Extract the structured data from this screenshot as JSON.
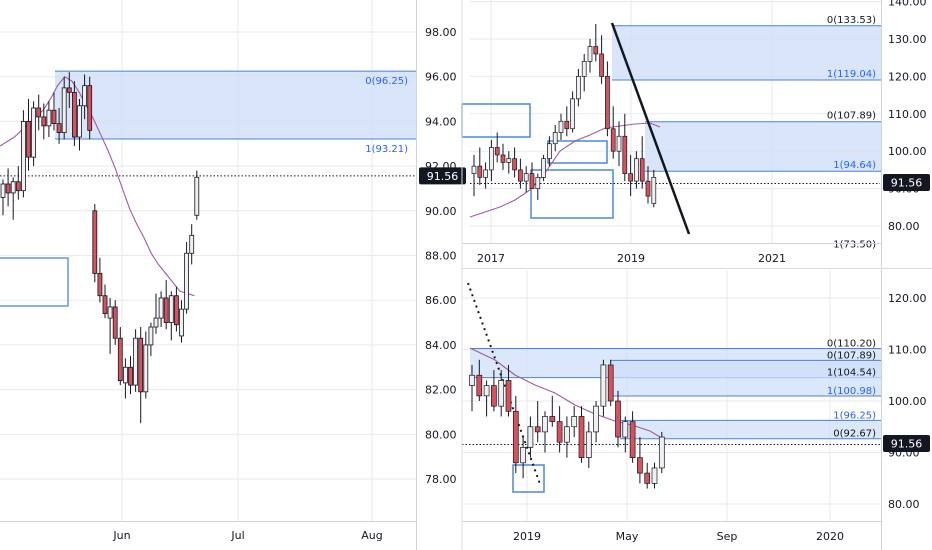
{
  "colors": {
    "up": "#f0f0f0",
    "down": "#d6525c",
    "wick": "#131722",
    "ma": "#a05aa8",
    "zone": "#cfdff8",
    "zone_border": "#4b82d6",
    "box": "#4b88d9",
    "highlight": "#3a66b8",
    "price_label_bg": "#131722",
    "grid": "#e8eaed"
  },
  "chart_data": [
    {
      "name": "daily",
      "type": "candlestick",
      "x_ticks": [
        "Jun",
        "Jul",
        "Aug"
      ],
      "y_ticks": [
        "78.00",
        "80.00",
        "82.00",
        "84.00",
        "86.00",
        "88.00",
        "90.00",
        "92.00",
        "94.00",
        "96.00",
        "98.00"
      ],
      "ylim": [
        76.0,
        99.5
      ],
      "last_price": "91.56",
      "fib_labels": [
        {
          "text": "0(96.25)",
          "value": 96.25
        },
        {
          "text": "1(93.21)",
          "value": 93.21
        }
      ],
      "candles": [
        {
          "o": 90.6,
          "h": 91.4,
          "l": 89.8,
          "c": 91.2
        },
        {
          "o": 91.2,
          "h": 91.9,
          "l": 90.2,
          "c": 90.8
        },
        {
          "o": 90.8,
          "h": 91.5,
          "l": 89.6,
          "c": 91.3
        },
        {
          "o": 91.3,
          "h": 92.0,
          "l": 90.5,
          "c": 90.9
        },
        {
          "o": 90.9,
          "h": 94.5,
          "l": 90.6,
          "c": 94.0
        },
        {
          "o": 94.0,
          "h": 95.0,
          "l": 91.8,
          "c": 92.4
        },
        {
          "o": 92.4,
          "h": 94.9,
          "l": 92.0,
          "c": 94.6
        },
        {
          "o": 94.6,
          "h": 95.2,
          "l": 93.6,
          "c": 94.2
        },
        {
          "o": 94.2,
          "h": 94.8,
          "l": 93.2,
          "c": 93.8
        },
        {
          "o": 93.8,
          "h": 94.9,
          "l": 93.3,
          "c": 94.5
        },
        {
          "o": 94.5,
          "h": 95.3,
          "l": 93.6,
          "c": 93.9
        },
        {
          "o": 93.9,
          "h": 94.6,
          "l": 93.0,
          "c": 93.5
        },
        {
          "o": 93.5,
          "h": 96.0,
          "l": 93.2,
          "c": 95.5
        },
        {
          "o": 95.5,
          "h": 96.2,
          "l": 94.6,
          "c": 95.3
        },
        {
          "o": 95.3,
          "h": 95.8,
          "l": 92.9,
          "c": 93.3
        },
        {
          "o": 93.3,
          "h": 95.0,
          "l": 92.7,
          "c": 94.7
        },
        {
          "o": 94.7,
          "h": 96.1,
          "l": 94.1,
          "c": 95.6
        },
        {
          "o": 95.6,
          "h": 96.0,
          "l": 93.2,
          "c": 93.6
        },
        {
          "o": 90.0,
          "h": 90.3,
          "l": 86.8,
          "c": 87.2
        },
        {
          "o": 87.2,
          "h": 87.9,
          "l": 85.9,
          "c": 86.2
        },
        {
          "o": 86.2,
          "h": 86.7,
          "l": 85.2,
          "c": 85.4
        },
        {
          "o": 85.2,
          "h": 86.1,
          "l": 83.6,
          "c": 85.7
        },
        {
          "o": 85.7,
          "h": 86.0,
          "l": 84.0,
          "c": 84.3
        },
        {
          "o": 84.3,
          "h": 84.8,
          "l": 82.2,
          "c": 82.4
        },
        {
          "o": 82.3,
          "h": 83.4,
          "l": 81.6,
          "c": 83.0
        },
        {
          "o": 83.0,
          "h": 83.5,
          "l": 81.8,
          "c": 82.2
        },
        {
          "o": 82.2,
          "h": 84.7,
          "l": 81.9,
          "c": 84.3
        },
        {
          "o": 84.3,
          "h": 84.8,
          "l": 80.5,
          "c": 81.9
        },
        {
          "o": 81.9,
          "h": 84.6,
          "l": 81.6,
          "c": 84.0
        },
        {
          "o": 84.0,
          "h": 85.0,
          "l": 83.5,
          "c": 84.8
        },
        {
          "o": 84.8,
          "h": 86.3,
          "l": 84.5,
          "c": 85.2
        },
        {
          "o": 85.2,
          "h": 86.4,
          "l": 84.8,
          "c": 86.1
        },
        {
          "o": 86.1,
          "h": 86.9,
          "l": 84.7,
          "c": 85.0
        },
        {
          "o": 85.0,
          "h": 86.4,
          "l": 84.2,
          "c": 86.2
        },
        {
          "o": 86.2,
          "h": 86.6,
          "l": 84.6,
          "c": 84.9
        },
        {
          "o": 84.4,
          "h": 86.0,
          "l": 84.1,
          "c": 85.6
        },
        {
          "o": 85.6,
          "h": 88.6,
          "l": 85.4,
          "c": 88.1
        },
        {
          "o": 88.1,
          "h": 89.4,
          "l": 87.6,
          "c": 88.9
        },
        {
          "o": 89.8,
          "h": 91.8,
          "l": 89.6,
          "c": 91.5
        }
      ],
      "ma": [
        92.9,
        93.1,
        93.3,
        93.6,
        93.9,
        94.2,
        94.5,
        95.0,
        95.6,
        96.0,
        95.8,
        95.3,
        94.7,
        94.1,
        93.4,
        92.7,
        91.9,
        91.0,
        90.1,
        89.4,
        88.8,
        88.1,
        87.6,
        87.2,
        86.8,
        86.4,
        86.3,
        86.2
      ]
    },
    {
      "name": "weekly",
      "type": "candlestick",
      "x_ticks": [
        "2017",
        "2019",
        "2021"
      ],
      "y_ticks": [
        "80.00",
        "90.00",
        "100.00",
        "110.00",
        "120.00",
        "130.00",
        "140.00"
      ],
      "ylim": [
        76.0,
        141.0
      ],
      "last_price": "91.56",
      "fib_labels": [
        {
          "text": "0(133.53)",
          "value": 133.53
        },
        {
          "text": "1(119.04)",
          "value": 119.04
        },
        {
          "text": "0(107.89)",
          "value": 107.89
        },
        {
          "text": "1(94.64)",
          "value": 94.64
        },
        {
          "text": "1(73.50)",
          "value": 73.5
        }
      ]
    },
    {
      "name": "weekly-zoom",
      "type": "candlestick",
      "x_ticks": [
        "2019",
        "May",
        "Sep",
        "2020"
      ],
      "y_ticks": [
        "80.00",
        "90.00",
        "100.00",
        "110.00",
        "120.00"
      ],
      "ylim": [
        77.0,
        124.0
      ],
      "last_price": "91.56",
      "fib_labels": [
        {
          "text": "0(110.20)",
          "value": 110.2
        },
        {
          "text": "0(107.89)",
          "value": 107.89
        },
        {
          "text": "1(104.54)",
          "value": 104.54
        },
        {
          "text": "1(100.98)",
          "value": 100.98
        },
        {
          "text": "1(96.25)",
          "value": 96.25
        },
        {
          "text": "0(92.67)",
          "value": 92.67
        }
      ]
    }
  ]
}
